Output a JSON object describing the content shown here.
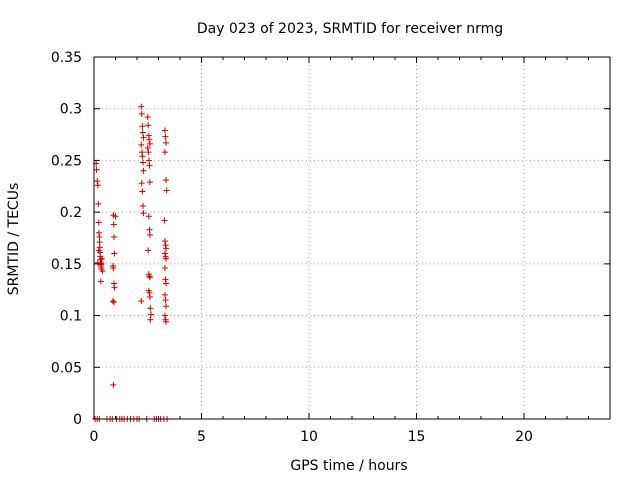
{
  "chart_data": {
    "type": "scatter",
    "title": "Day 023 of 2023, SRMTID for receiver nrmg",
    "xlabel": "GPS time / hours",
    "ylabel": "SRMTID / TECUs",
    "xlim": [
      0,
      24
    ],
    "ylim": [
      0,
      0.35
    ],
    "xticks": [
      0,
      5,
      10,
      15,
      20
    ],
    "xtick_labels": [
      "0",
      "5",
      "10",
      "15",
      "20"
    ],
    "yticks": [
      0,
      0.05,
      0.1,
      0.15,
      0.2,
      0.25,
      0.3,
      0.35
    ],
    "ytick_labels": [
      "0",
      "0.05",
      "0.1",
      "0.15",
      "0.2",
      "0.25",
      "0.3",
      "0.35"
    ],
    "grid": true,
    "marker": "+",
    "color": "#d00000",
    "series": [
      {
        "name": "nrmg",
        "points": [
          [
            0.1,
            0.247
          ],
          [
            0.12,
            0.241
          ],
          [
            0.15,
            0.23
          ],
          [
            0.18,
            0.226
          ],
          [
            0.2,
            0.208
          ],
          [
            0.22,
            0.19
          ],
          [
            0.23,
            0.18
          ],
          [
            0.25,
            0.176
          ],
          [
            0.26,
            0.171
          ],
          [
            0.27,
            0.166
          ],
          [
            0.28,
            0.161
          ],
          [
            0.29,
            0.157
          ],
          [
            0.3,
            0.154
          ],
          [
            0.31,
            0.151
          ],
          [
            0.32,
            0.149
          ],
          [
            0.33,
            0.147
          ],
          [
            0.34,
            0.145
          ],
          [
            0.35,
            0.15
          ],
          [
            0.37,
            0.155
          ],
          [
            0.4,
            0.143
          ],
          [
            0.32,
            0.133
          ],
          [
            0.18,
            0.151
          ],
          [
            0.22,
            0.163
          ],
          [
            0.9,
            0.197
          ],
          [
            0.92,
            0.188
          ],
          [
            0.93,
            0.176
          ],
          [
            0.95,
            0.16
          ],
          [
            0.88,
            0.148
          ],
          [
            0.9,
            0.146
          ],
          [
            0.93,
            0.131
          ],
          [
            0.95,
            0.127
          ],
          [
            0.88,
            0.114
          ],
          [
            0.92,
            0.113
          ],
          [
            1.0,
            0.196
          ],
          [
            0.9,
            0.033
          ],
          [
            2.2,
            0.302
          ],
          [
            2.22,
            0.295
          ],
          [
            2.25,
            0.283
          ],
          [
            2.27,
            0.277
          ],
          [
            2.3,
            0.272
          ],
          [
            2.2,
            0.265
          ],
          [
            2.23,
            0.258
          ],
          [
            2.25,
            0.254
          ],
          [
            2.28,
            0.248
          ],
          [
            2.3,
            0.24
          ],
          [
            2.22,
            0.228
          ],
          [
            2.25,
            0.22
          ],
          [
            2.28,
            0.206
          ],
          [
            2.3,
            0.199
          ],
          [
            2.2,
            0.114
          ],
          [
            2.5,
            0.292
          ],
          [
            2.52,
            0.284
          ],
          [
            2.55,
            0.274
          ],
          [
            2.57,
            0.27
          ],
          [
            2.6,
            0.266
          ],
          [
            2.5,
            0.262
          ],
          [
            2.53,
            0.258
          ],
          [
            2.56,
            0.25
          ],
          [
            2.58,
            0.245
          ],
          [
            2.6,
            0.229
          ],
          [
            2.55,
            0.196
          ],
          [
            2.58,
            0.183
          ],
          [
            2.6,
            0.178
          ],
          [
            2.52,
            0.163
          ],
          [
            2.55,
            0.14
          ],
          [
            2.58,
            0.138
          ],
          [
            2.6,
            0.137
          ],
          [
            2.55,
            0.124
          ],
          [
            2.58,
            0.122
          ],
          [
            2.6,
            0.118
          ],
          [
            2.62,
            0.107
          ],
          [
            2.65,
            0.101
          ],
          [
            2.62,
            0.096
          ],
          [
            3.3,
            0.279
          ],
          [
            3.32,
            0.273
          ],
          [
            3.35,
            0.267
          ],
          [
            3.3,
            0.258
          ],
          [
            3.35,
            0.231
          ],
          [
            3.38,
            0.221
          ],
          [
            3.28,
            0.192
          ],
          [
            3.3,
            0.172
          ],
          [
            3.33,
            0.168
          ],
          [
            3.35,
            0.165
          ],
          [
            3.3,
            0.16
          ],
          [
            3.33,
            0.157
          ],
          [
            3.35,
            0.155
          ],
          [
            3.3,
            0.146
          ],
          [
            3.32,
            0.135
          ],
          [
            3.35,
            0.131
          ],
          [
            3.3,
            0.12
          ],
          [
            3.33,
            0.115
          ],
          [
            3.35,
            0.109
          ],
          [
            3.3,
            0.1
          ],
          [
            3.33,
            0.096
          ],
          [
            3.35,
            0.094
          ],
          [
            0.05,
            0
          ],
          [
            0.15,
            0
          ],
          [
            0.25,
            0
          ],
          [
            0.6,
            0
          ],
          [
            0.75,
            0
          ],
          [
            0.85,
            0
          ],
          [
            1.05,
            0
          ],
          [
            1.2,
            0
          ],
          [
            1.3,
            0
          ],
          [
            1.4,
            0
          ],
          [
            1.55,
            0
          ],
          [
            1.7,
            0
          ],
          [
            1.85,
            0
          ],
          [
            2.0,
            0
          ],
          [
            2.1,
            0
          ],
          [
            2.45,
            0
          ],
          [
            2.8,
            0
          ],
          [
            2.9,
            0
          ],
          [
            3.0,
            0
          ],
          [
            3.1,
            0
          ],
          [
            3.25,
            0
          ],
          [
            3.4,
            0
          ]
        ]
      }
    ]
  }
}
